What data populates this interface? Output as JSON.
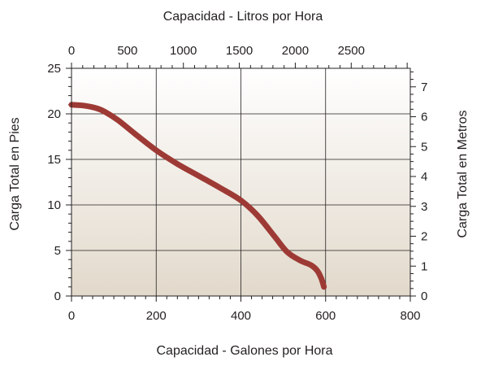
{
  "chart_data": {
    "type": "line",
    "title": "",
    "xlabel": "Capacidad - Galones por Hora",
    "ylabel": "Carga Total en Pies",
    "x2label": "Capacidad - Litros por Hora",
    "y2label": "Carga Total en Metros",
    "xlim": [
      0,
      800
    ],
    "ylim": [
      0,
      25
    ],
    "x2lim": [
      0,
      3028
    ],
    "y2lim": [
      0,
      7.62
    ],
    "x_ticks": [
      "0",
      "200",
      "400",
      "600",
      "800"
    ],
    "y_ticks": [
      "0",
      "5",
      "10",
      "15",
      "20",
      "25"
    ],
    "x2_ticks": [
      "0",
      "500",
      "1000",
      "1500",
      "2000",
      "2500"
    ],
    "y2_ticks": [
      "0",
      "1",
      "2",
      "3",
      "4",
      "5",
      "6",
      "7"
    ],
    "grid": true,
    "series": [
      {
        "color": "#9e3a35",
        "x": [
          0,
          30,
          60,
          80,
          110,
          150,
          200,
          250,
          300,
          350,
          400,
          440,
          480,
          510,
          540,
          565,
          580,
          590,
          596
        ],
        "y": [
          21,
          20.9,
          20.6,
          20.2,
          19.3,
          17.8,
          16,
          14.5,
          13.2,
          11.9,
          10.5,
          8.8,
          6.5,
          4.8,
          3.9,
          3.4,
          2.8,
          1.9,
          1.0
        ]
      }
    ]
  }
}
